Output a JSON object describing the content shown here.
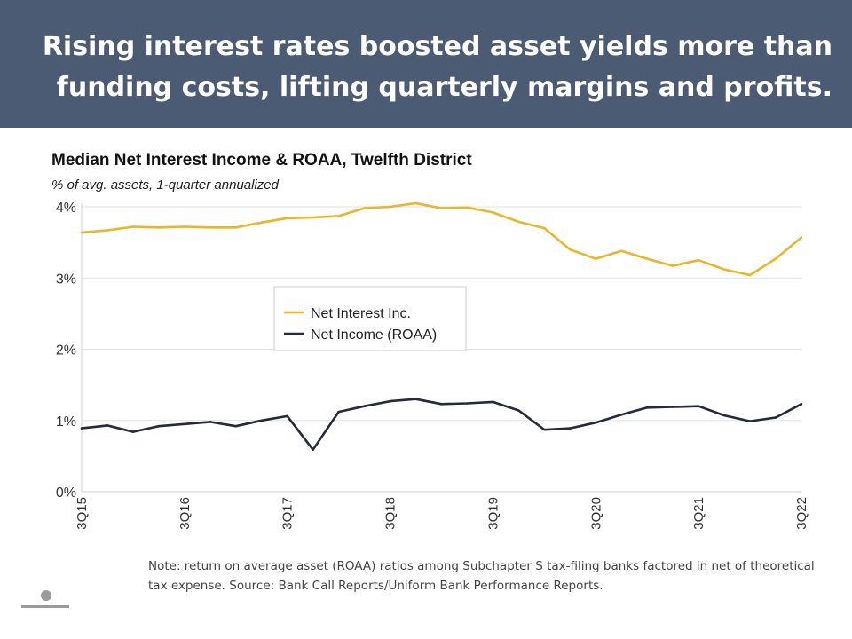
{
  "header": {
    "title": "Rising interest rates boosted asset yields more than funding costs, lifting quarterly margins and profits."
  },
  "footer": {
    "note": "Note: return on average asset (ROAA) ratios among Subchapter S tax-filing banks factored in net of theoretical tax expense. Source: Bank Call Reports/Uniform Bank Performance Reports."
  },
  "colors": {
    "header_bg": "#4b5b73",
    "net_interest": "#eab529",
    "net_income": "#232a3e"
  },
  "chart_data": {
    "type": "line",
    "title": "Median Net Interest Income & ROAA, Twelfth District",
    "subtitle": "% of avg. assets, 1-quarter annualized",
    "xlabel": "",
    "ylabel": "",
    "ylim": [
      0,
      4
    ],
    "yticks": [
      "0%",
      "1%",
      "2%",
      "3%",
      "4%"
    ],
    "x": [
      "3Q15",
      "4Q15",
      "1Q16",
      "2Q16",
      "3Q16",
      "4Q16",
      "1Q17",
      "2Q17",
      "3Q17",
      "4Q17",
      "1Q18",
      "2Q18",
      "3Q18",
      "4Q18",
      "1Q19",
      "2Q19",
      "3Q19",
      "4Q19",
      "1Q20",
      "2Q20",
      "3Q20",
      "4Q20",
      "1Q21",
      "2Q21",
      "3Q21",
      "4Q21",
      "1Q22",
      "2Q22",
      "3Q22"
    ],
    "xticks": [
      "3Q15",
      "3Q16",
      "3Q17",
      "3Q18",
      "3Q19",
      "3Q20",
      "3Q21",
      "3Q22"
    ],
    "grid": true,
    "legend_position": "center-left",
    "series": [
      {
        "name": "Net Interest Inc.",
        "color": "#eab529",
        "values": [
          3.64,
          3.67,
          3.72,
          3.71,
          3.72,
          3.71,
          3.71,
          3.78,
          3.84,
          3.85,
          3.87,
          3.98,
          4.0,
          4.05,
          3.98,
          3.99,
          3.92,
          3.79,
          3.7,
          3.4,
          3.27,
          3.38,
          3.27,
          3.17,
          3.25,
          3.12,
          3.04,
          3.27,
          3.57
        ]
      },
      {
        "name": "Net Income (ROAA)",
        "color": "#232a3e",
        "values": [
          0.89,
          0.93,
          0.84,
          0.92,
          0.95,
          0.98,
          0.92,
          1.0,
          1.06,
          0.59,
          1.12,
          1.2,
          1.27,
          1.3,
          1.23,
          1.24,
          1.26,
          1.14,
          0.87,
          0.89,
          0.97,
          1.08,
          1.18,
          1.19,
          1.2,
          1.07,
          0.99,
          1.04,
          1.23
        ]
      }
    ]
  }
}
